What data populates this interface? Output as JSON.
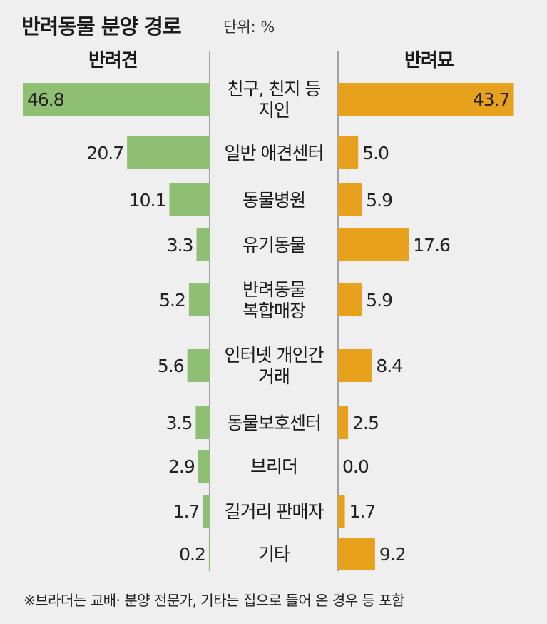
{
  "header": {
    "title": "반려동물 분양 경로",
    "unit": "단위: %"
  },
  "footnote": "※브라더는 교배· 분양 전문가, 기타는 집으로 들어 온 경우 등 포함",
  "chart_data": {
    "type": "bar",
    "orientation": "horizontal-diverging",
    "categories": [
      [
        "친구, 친지 등",
        "지인"
      ],
      [
        "일반 애견센터"
      ],
      [
        "동물병원"
      ],
      [
        "유기동물"
      ],
      [
        "반려동물",
        "복합매장"
      ],
      [
        "인터넷 개인간",
        "거래"
      ],
      [
        "동물보호센터"
      ],
      [
        "브리더"
      ],
      [
        "길거리 판매자"
      ],
      [
        "기타"
      ]
    ],
    "series": [
      {
        "name": "반려견",
        "color": "#8fbf72",
        "side": "left",
        "values": [
          46.8,
          20.7,
          10.1,
          3.3,
          5.2,
          5.6,
          3.5,
          2.9,
          1.7,
          0.2
        ],
        "labels": [
          "46.8",
          "20.7",
          "10.1",
          "3.3",
          "5.2",
          "5.6",
          "3.5",
          "2.9",
          "1.7",
          "0.2"
        ]
      },
      {
        "name": "반려묘",
        "color": "#e7a11d",
        "side": "right",
        "values": [
          43.7,
          5.0,
          5.9,
          17.6,
          5.9,
          8.4,
          2.5,
          0.0,
          1.7,
          9.2
        ],
        "labels": [
          "43.7",
          "5.0",
          "5.9",
          "17.6",
          "5.9",
          "8.4",
          "2.5",
          "0.0",
          "1.7",
          "9.2"
        ]
      }
    ],
    "xlim": [
      0,
      46.8
    ],
    "grid": false
  }
}
